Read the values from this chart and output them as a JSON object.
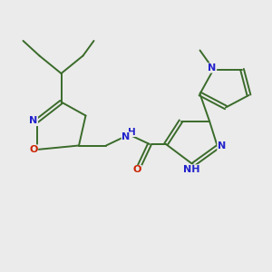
{
  "background_color": "#ebebeb",
  "bond_color": "#3a6b2a",
  "bond_width": 1.4,
  "N_color": "#2222cc",
  "O_color": "#cc2200",
  "font_size": 8.0,
  "figsize": [
    3.0,
    3.0
  ],
  "dpi": 100,
  "xlim": [
    0,
    10
  ],
  "ylim": [
    0,
    10
  ]
}
